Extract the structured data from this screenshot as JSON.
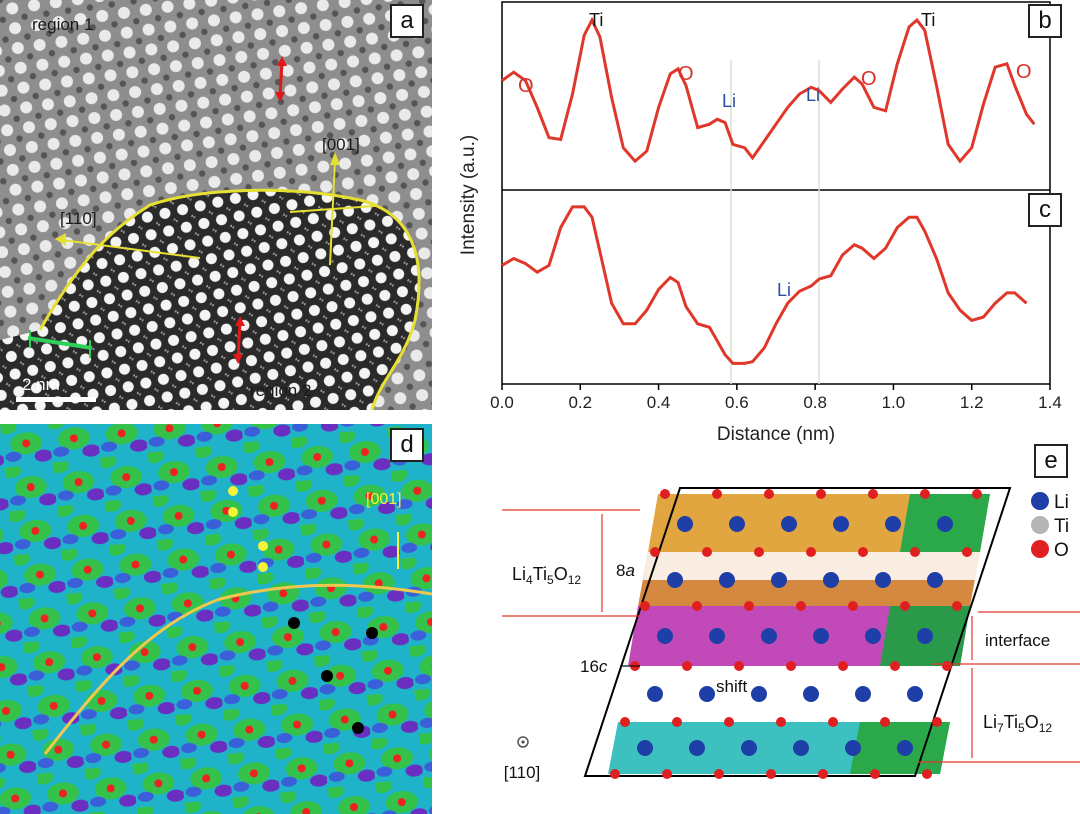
{
  "panels": {
    "a": {
      "tag": "a",
      "labels": {
        "region1": "region 1",
        "region2": "region 2",
        "dir001": "[001]",
        "dir110": "[110]",
        "scale": "2 nm"
      },
      "colors": {
        "boundary": "#e6e033",
        "arrow_red": "#e01818",
        "scalebar_green": "#2fd05a"
      }
    },
    "b": {
      "tag": "b",
      "peak_labels": [
        {
          "text": "O",
          "color": "#d9302a"
        },
        {
          "text": "Ti",
          "color": "#111111"
        },
        {
          "text": "O",
          "color": "#d9302a"
        },
        {
          "text": "Li",
          "color": "#2b4ea3"
        },
        {
          "text": "Li",
          "color": "#2b4ea3"
        },
        {
          "text": "O",
          "color": "#d9302a"
        },
        {
          "text": "Ti",
          "color": "#111111"
        },
        {
          "text": "O",
          "color": "#d9302a"
        }
      ]
    },
    "c": {
      "tag": "c",
      "peak_labels": [
        {
          "text": "Li",
          "color": "#2b4ea3"
        }
      ]
    },
    "d": {
      "tag": "d",
      "labels": {
        "dir001": "[001]"
      },
      "colors": {
        "background": "#1fb3c9",
        "blob_green": "#34c24a",
        "blob_purple": "#6a2fc0",
        "dot_red": "#ee2222",
        "boundary": "#f0c850"
      }
    },
    "e": {
      "tag": "e",
      "legend": [
        {
          "label": "Li",
          "color": "#1f3fa8"
        },
        {
          "label": "Ti",
          "color": "#b5b5b5"
        },
        {
          "label": "O",
          "color": "#e02020"
        }
      ],
      "labels": {
        "li4": "Li4Ti5O12",
        "li4_base": "Li",
        "li4_s1": "4",
        "li4_mid": "Ti",
        "li4_s2": "5",
        "li4_o": "O",
        "li4_s3": "12",
        "site8a": "8a",
        "site8a_num": "8",
        "site8a_it": "a",
        "site16c": "16c",
        "site16c_num": "16",
        "site16c_it": "c",
        "shift": "shift",
        "interface": "interface",
        "li7": "Li7Ti5O12",
        "li7_base": "Li",
        "li7_s1": "7",
        "li7_mid": "Ti",
        "li7_s2": "5",
        "li7_o": "O",
        "li7_s3": "12",
        "zone": "[110]"
      },
      "row_colors": [
        "#e2a640",
        "#e2a640",
        "#c24ab8",
        "#ffffff",
        "#3cc0c0",
        "#ffffff"
      ]
    }
  },
  "chart_data": [
    {
      "type": "line",
      "title": "",
      "xlabel": "Distance (nm)",
      "ylabel": "Intensity (a.u.)",
      "xlim": [
        0.0,
        1.4
      ],
      "x_ticks": [
        "0.0",
        "0.2",
        "0.4",
        "0.6",
        "0.8",
        "1.0",
        "1.2",
        "1.4"
      ],
      "grid": false,
      "series": [
        {
          "color": "#e0372b",
          "x": [
            0.0,
            0.03,
            0.06,
            0.09,
            0.12,
            0.15,
            0.18,
            0.21,
            0.23,
            0.25,
            0.28,
            0.31,
            0.34,
            0.37,
            0.4,
            0.43,
            0.45,
            0.47,
            0.5,
            0.53,
            0.55,
            0.57,
            0.59,
            0.62,
            0.64,
            0.67,
            0.7,
            0.73,
            0.76,
            0.79,
            0.81,
            0.84,
            0.87,
            0.9,
            0.92,
            0.95,
            0.98,
            1.01,
            1.04,
            1.06,
            1.08,
            1.11,
            1.14,
            1.17,
            1.2,
            1.23,
            1.26,
            1.29,
            1.31,
            1.34,
            1.36
          ],
          "y": [
            0.58,
            0.63,
            0.58,
            0.42,
            0.24,
            0.23,
            0.5,
            0.85,
            0.94,
            0.84,
            0.48,
            0.18,
            0.1,
            0.16,
            0.42,
            0.62,
            0.65,
            0.55,
            0.3,
            0.32,
            0.35,
            0.33,
            0.2,
            0.18,
            0.12,
            0.22,
            0.32,
            0.42,
            0.5,
            0.54,
            0.52,
            0.45,
            0.53,
            0.6,
            0.56,
            0.42,
            0.4,
            0.68,
            0.9,
            0.94,
            0.88,
            0.55,
            0.2,
            0.1,
            0.18,
            0.44,
            0.66,
            0.68,
            0.55,
            0.38,
            0.32
          ]
        }
      ]
    },
    {
      "type": "line",
      "title": "",
      "xlabel": "Distance (nm)",
      "ylabel": "Intensity (a.u.)",
      "xlim": [
        0.0,
        1.4
      ],
      "grid": false,
      "series": [
        {
          "color": "#e0372b",
          "x": [
            0.0,
            0.03,
            0.06,
            0.09,
            0.12,
            0.15,
            0.18,
            0.21,
            0.23,
            0.25,
            0.28,
            0.31,
            0.34,
            0.37,
            0.4,
            0.43,
            0.45,
            0.47,
            0.5,
            0.53,
            0.55,
            0.57,
            0.59,
            0.62,
            0.64,
            0.67,
            0.7,
            0.73,
            0.76,
            0.79,
            0.81,
            0.84,
            0.87,
            0.9,
            0.92,
            0.95,
            0.98,
            1.01,
            1.04,
            1.06,
            1.08,
            1.11,
            1.14,
            1.17,
            1.2,
            1.23,
            1.26,
            1.29,
            1.31,
            1.34
          ],
          "y": [
            0.62,
            0.66,
            0.63,
            0.58,
            0.62,
            0.84,
            0.96,
            0.96,
            0.9,
            0.7,
            0.4,
            0.28,
            0.28,
            0.36,
            0.48,
            0.55,
            0.52,
            0.38,
            0.28,
            0.26,
            0.18,
            0.1,
            0.05,
            0.05,
            0.06,
            0.14,
            0.28,
            0.4,
            0.47,
            0.5,
            0.54,
            0.56,
            0.68,
            0.74,
            0.72,
            0.66,
            0.72,
            0.84,
            0.9,
            0.9,
            0.82,
            0.66,
            0.46,
            0.36,
            0.3,
            0.32,
            0.4,
            0.46,
            0.46,
            0.4
          ]
        }
      ]
    }
  ]
}
